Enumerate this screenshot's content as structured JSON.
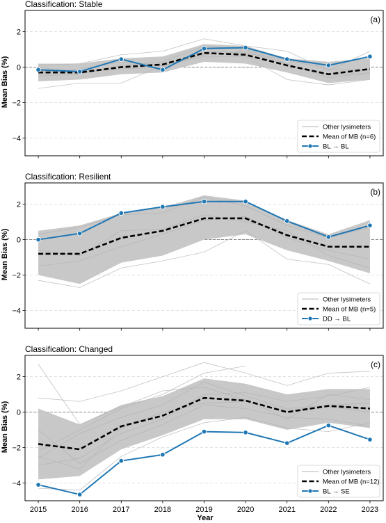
{
  "figure": {
    "xlabel": "Year",
    "ylabel": "Mean Bias (%)"
  },
  "chart_data": [
    {
      "type": "line",
      "panel": "(a)",
      "title": "Classification: Stable",
      "x": [
        2015,
        2016,
        2017,
        2018,
        2019,
        2020,
        2021,
        2022,
        2023
      ],
      "ylim": [
        -5,
        3.2
      ],
      "yticks": [
        2,
        0,
        -2,
        -4
      ],
      "legend": [
        "Other lysimeters",
        "Mean of MB (n=6)",
        "BL → BL"
      ],
      "legend_position": "lower-right",
      "band": {
        "upper": [
          0.2,
          0.2,
          0.5,
          0.6,
          1.3,
          1.2,
          0.5,
          0.3,
          0.5
        ],
        "lower": [
          -0.8,
          -0.7,
          -0.4,
          -0.3,
          0.3,
          0.2,
          -0.3,
          -0.9,
          -0.7
        ]
      },
      "others": [
        {
          "x": [
            2015,
            2016,
            2017,
            2018,
            2019,
            2020,
            2021,
            2022,
            2023
          ],
          "values": [
            -1.2,
            -0.9,
            -0.9,
            0.1,
            0.6,
            0.6,
            -0.7,
            -1.0,
            -0.7
          ]
        },
        {
          "x": [
            2015,
            2016,
            2017,
            2018,
            2019,
            2020,
            2021,
            2022,
            2023
          ],
          "values": [
            0.1,
            0.2,
            0.7,
            0.9,
            1.6,
            1.2,
            0.9,
            -0.2,
            0.9
          ]
        },
        {
          "x": [
            2015,
            2016,
            2017,
            2018,
            2019,
            2020,
            2021,
            2022,
            2023
          ],
          "values": [
            -0.5,
            -0.4,
            0.1,
            0.3,
            1.2,
            1.0,
            0.2,
            -0.6,
            -0.3
          ]
        },
        {
          "x": [
            2015,
            2016,
            2017,
            2018,
            2019,
            2020,
            2021,
            2022,
            2023
          ],
          "values": [
            -0.3,
            -0.1,
            0.3,
            0.1,
            0.7,
            0.9,
            0.1,
            -0.4,
            -0.4
          ]
        },
        {
          "x": [
            2015,
            2016,
            2017,
            2018,
            2019,
            2020,
            2021,
            2022,
            2023
          ],
          "values": [
            0.0,
            -0.3,
            -0.1,
            0.0,
            0.9,
            0.8,
            0.4,
            -0.1,
            -0.2
          ]
        }
      ],
      "mean": {
        "name": "Mean of MB (n=6)",
        "values": [
          -0.3,
          -0.3,
          0.0,
          0.15,
          0.8,
          0.7,
          0.1,
          -0.4,
          -0.1
        ]
      },
      "series": [
        {
          "name": "BL → BL",
          "values": [
            -0.15,
            -0.25,
            0.45,
            -0.15,
            1.05,
            1.1,
            0.45,
            0.1,
            0.6
          ]
        }
      ]
    },
    {
      "type": "line",
      "panel": "(b)",
      "title": "Classification: Resilient",
      "x": [
        2015,
        2016,
        2017,
        2018,
        2019,
        2020,
        2021,
        2022,
        2023
      ],
      "ylim": [
        -5,
        3.2
      ],
      "yticks": [
        2,
        0,
        -2,
        -4
      ],
      "legend": [
        "Other lysimeters",
        "Mean of MB (n=5)",
        "DD → BL"
      ],
      "legend_position": "lower-right",
      "band": {
        "upper": [
          0.5,
          0.8,
          1.5,
          1.8,
          2.5,
          2.2,
          1.1,
          0.3,
          1.1
        ],
        "lower": [
          -2.0,
          -2.5,
          -1.3,
          -0.9,
          0.0,
          0.3,
          -0.6,
          -1.2,
          -1.9
        ]
      },
      "others": [
        {
          "x": [
            2015,
            2016,
            2017,
            2018,
            2019,
            2020,
            2021,
            2022,
            2023
          ],
          "values": [
            -2.3,
            -2.7,
            -1.6,
            -1.2,
            -0.7,
            0.5,
            -1.1,
            -1.4,
            -2.5
          ]
        },
        {
          "x": [
            2015,
            2016,
            2017,
            2018,
            2019,
            2020,
            2021,
            2022,
            2023
          ],
          "values": [
            0.3,
            0.7,
            1.4,
            1.5,
            2.4,
            1.9,
            0.8,
            0.1,
            0.7
          ]
        },
        {
          "x": [
            2015,
            2016,
            2017,
            2018,
            2019,
            2020,
            2021,
            2022,
            2023
          ],
          "values": [
            -1.5,
            -1.2,
            -0.4,
            0.3,
            1.1,
            1.3,
            0.1,
            -0.6,
            -1.1
          ]
        },
        {
          "x": [
            2015,
            2016,
            2017,
            2018,
            2019,
            2020,
            2021,
            2022,
            2023
          ],
          "values": [
            -0.6,
            -0.9,
            0.5,
            0.6,
            1.4,
            1.0,
            0.5,
            -0.9,
            -1.6
          ]
        }
      ],
      "mean": {
        "name": "Mean of MB (n=5)",
        "values": [
          -0.8,
          -0.8,
          0.1,
          0.5,
          1.2,
          1.2,
          0.25,
          -0.4,
          -0.4
        ]
      },
      "series": [
        {
          "name": "DD → BL",
          "values": [
            0.0,
            0.35,
            1.5,
            1.85,
            2.15,
            2.15,
            1.05,
            0.15,
            0.8
          ]
        }
      ]
    },
    {
      "type": "line",
      "panel": "(c)",
      "title": "Classification: Changed",
      "x": [
        2015,
        2016,
        2017,
        2018,
        2019,
        2020,
        2021,
        2022,
        2023
      ],
      "ylim": [
        -5,
        3.2
      ],
      "yticks": [
        2,
        0,
        -2,
        -4
      ],
      "legend": [
        "Other lysimeters",
        "Mean of MB (n=12)",
        "BL → SE"
      ],
      "legend_position": "lower-right",
      "band": {
        "upper": [
          0.2,
          -0.7,
          0.4,
          0.9,
          1.9,
          1.6,
          1.0,
          1.3,
          1.3
        ],
        "lower": [
          -3.8,
          -3.6,
          -2.1,
          -1.3,
          -0.4,
          -0.4,
          -1.0,
          -0.6,
          -0.9
        ]
      },
      "others": [
        {
          "x": [
            2015,
            2016,
            2017,
            2018,
            2019,
            2020,
            2021,
            2022,
            2023
          ],
          "values": [
            2.7,
            -0.7,
            0.3,
            1.2,
            1.4,
            0.7,
            -0.4,
            1.0,
            0.7
          ]
        },
        {
          "x": [
            2015,
            2016,
            2017,
            2018,
            2019,
            2020,
            2021,
            2022,
            2023
          ],
          "values": [
            0.8,
            0.6,
            1.2,
            2.0,
            2.8,
            2.2,
            1.5,
            2.2,
            2.3
          ]
        },
        {
          "x": [
            2015,
            2016,
            2017,
            2018,
            2019,
            2020,
            2021,
            2022,
            2023
          ],
          "values": [
            -4.3,
            -4.4,
            -2.5,
            -1.4,
            -0.6,
            -0.3,
            -0.9,
            -1.1,
            -0.6
          ]
        },
        {
          "x": [
            2015,
            2016,
            2017,
            2018,
            2019,
            2020,
            2021,
            2022,
            2023
          ],
          "values": [
            -2.6,
            -1.2,
            -0.3,
            0.4,
            1.7,
            0.9,
            0.2,
            0.4,
            0.5
          ]
        },
        {
          "x": [
            2015,
            2016,
            2017,
            2018,
            2019,
            2020,
            2021,
            2022,
            2023
          ],
          "values": [
            -1.0,
            -2.9,
            -1.6,
            -0.7,
            0.4,
            0.2,
            -0.3,
            -0.4,
            -0.8
          ]
        },
        {
          "x": [
            2015,
            2016,
            2017,
            2018,
            2019,
            2020,
            2021,
            2022,
            2023
          ],
          "values": [
            -3.0,
            -2.6,
            -1.2,
            -0.4,
            1.0,
            1.1,
            0.6,
            0.9,
            1.4
          ]
        },
        {
          "x": [
            2015,
            2016,
            2017,
            2018,
            2019,
            2020
          ],
          "values": [
            -2.2,
            -1.0,
            0.2,
            1.0,
            2.2,
            2.6
          ]
        },
        {
          "x": [
            2015,
            2016,
            2017,
            2018,
            2019,
            2020,
            2021,
            2022,
            2023
          ],
          "values": [
            -2.5,
            -3.2,
            -0.9,
            0.0,
            0.5,
            0.6,
            0.1,
            0.3,
            0.0
          ]
        }
      ],
      "mean": {
        "name": "Mean of MB (n=12)",
        "values": [
          -1.8,
          -2.1,
          -0.8,
          -0.2,
          0.8,
          0.65,
          0.0,
          0.35,
          0.2
        ]
      },
      "series": [
        {
          "name": "BL → SE",
          "values": [
            -4.1,
            -4.65,
            -2.75,
            -2.4,
            -1.1,
            -1.15,
            -1.75,
            -0.75,
            -1.55
          ]
        }
      ]
    }
  ]
}
